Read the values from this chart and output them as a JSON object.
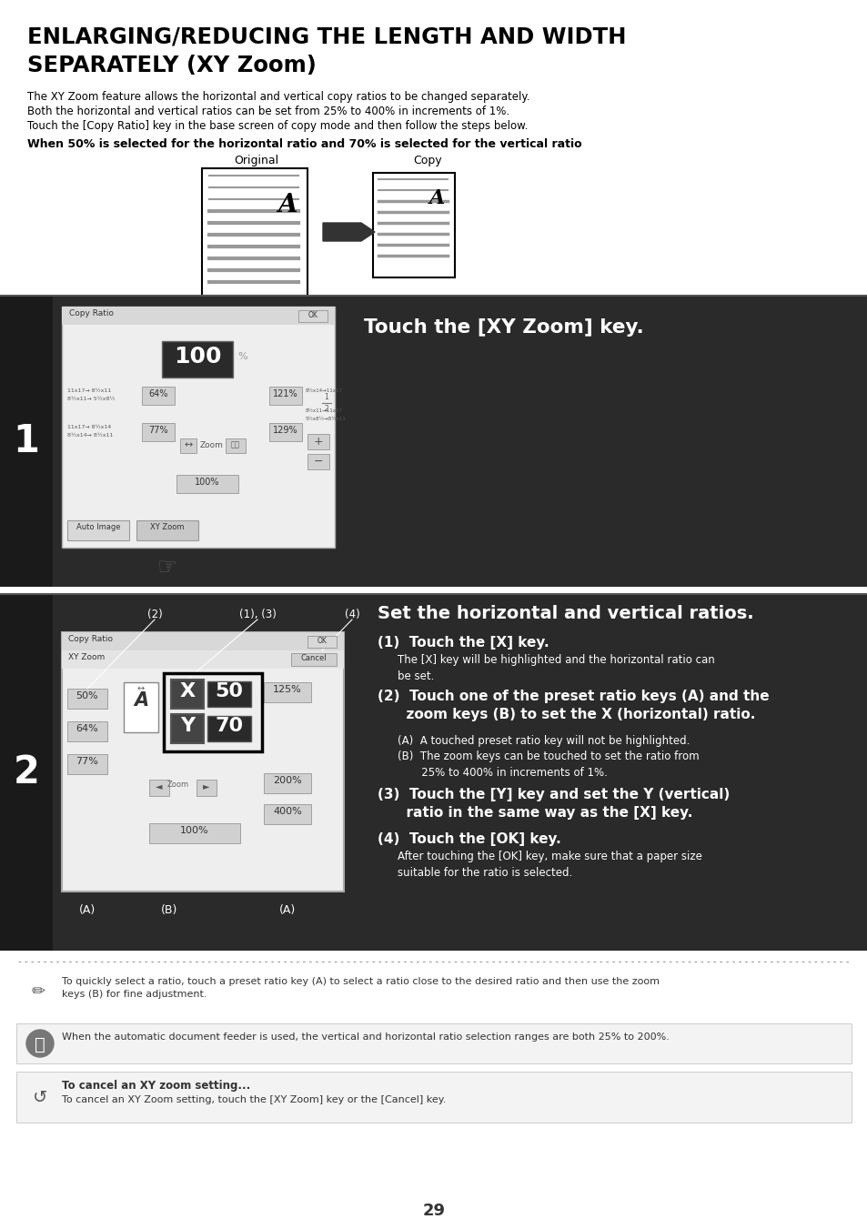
{
  "title_line1": "ENLARGING/REDUCING THE LENGTH AND WIDTH",
  "title_line2": "SEPARATELY (XY Zoom)",
  "body_text": [
    "The XY Zoom feature allows the horizontal and vertical copy ratios to be changed separately.",
    "Both the horizontal and vertical ratios can be set from 25% to 400% in increments of 1%.",
    "Touch the [Copy Ratio] key in the base screen of copy mode and then follow the steps below."
  ],
  "subtitle": "When 50% is selected for the horizontal ratio and 70% is selected for the vertical ratio",
  "original_label": "Original",
  "copy_label": "Copy",
  "step1_title": "Touch the [XY Zoom] key.",
  "step2_title": "Set the horizontal and vertical ratios.",
  "tip_text": "To quickly select a ratio, touch a preset ratio key (A) to select a ratio close to the desired ratio and then use the zoom\nkeys (B) for fine adjustment.",
  "note1_text": "When the automatic document feeder is used, the vertical and horizontal ratio selection ranges are both 25% to 200%.",
  "note2_title": "To cancel an XY zoom setting...",
  "note2_text": "To cancel an XY Zoom setting, touch the [XY Zoom] key or the [Cancel] key.",
  "page_number": "29",
  "bg_color": "#ffffff",
  "dark_bg": "#2a2a2a",
  "darker_bg": "#1a1a1a",
  "step2_right_text_color": "#000000",
  "border_color": "#000000"
}
